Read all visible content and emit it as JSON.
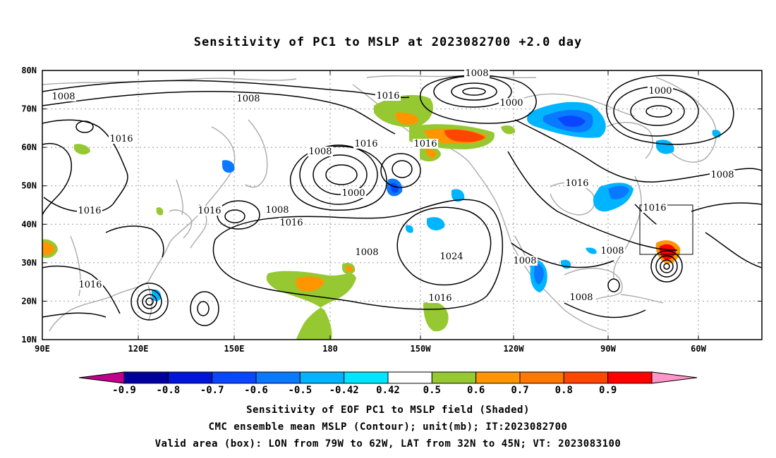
{
  "title": "Sensitivity of PC1 to MSLP at 2023082700 +2.0 day",
  "axes": {
    "lat_ticks": [
      "80N",
      "70N",
      "60N",
      "50N",
      "40N",
      "30N",
      "20N",
      "10N"
    ],
    "lon_ticks": [
      "90E",
      "120E",
      "150E",
      "180",
      "150W",
      "120W",
      "90W",
      "60W"
    ]
  },
  "contour_labels": [
    {
      "id": "c1",
      "text": "1008"
    },
    {
      "id": "c2",
      "text": "1008"
    },
    {
      "id": "c3",
      "text": "1016"
    },
    {
      "id": "c4",
      "text": "1008"
    },
    {
      "id": "c5",
      "text": "1000"
    },
    {
      "id": "c6",
      "text": "1000"
    },
    {
      "id": "c7",
      "text": "1016"
    },
    {
      "id": "c8",
      "text": "1008"
    },
    {
      "id": "c9",
      "text": "1016"
    },
    {
      "id": "c10",
      "text": "1016"
    },
    {
      "id": "c11",
      "text": "1000"
    },
    {
      "id": "c12",
      "text": "1016"
    },
    {
      "id": "c13",
      "text": "1016"
    },
    {
      "id": "c14",
      "text": "1008"
    },
    {
      "id": "c15",
      "text": "1016"
    },
    {
      "id": "c16",
      "text": "1016"
    },
    {
      "id": "c17",
      "text": "1024"
    },
    {
      "id": "c18",
      "text": "1008"
    },
    {
      "id": "c19",
      "text": "1016"
    },
    {
      "id": "c20",
      "text": "1008"
    },
    {
      "id": "c21",
      "text": "1008"
    },
    {
      "id": "c22",
      "text": "1016"
    },
    {
      "id": "c23",
      "text": "1008"
    },
    {
      "id": "c24",
      "text": "1016"
    }
  ],
  "colorbar": {
    "levels": [
      "-0.9",
      "-0.8",
      "-0.7",
      "-0.6",
      "-0.5",
      "-0.42",
      "0.42",
      "0.5",
      "0.6",
      "0.7",
      "0.8",
      "0.9"
    ],
    "colors": [
      "#c0008c",
      "#0000a0",
      "#0014dc",
      "#0a46ff",
      "#0a78ff",
      "#00b4ff",
      "#00e6ff",
      "#ffffff",
      "#96c832",
      "#ff9600",
      "#ff7800",
      "#ff4600",
      "#ff0000",
      "#ff96c8"
    ]
  },
  "captions": {
    "line1": "Sensitivity of EOF PC1 to MSLP field (Shaded)",
    "line2": "CMC ensemble mean MSLP (Contour); unit(mb); IT:2023082700",
    "line3": "Valid area (box): LON from 79W to 62W, LAT from 32N to 45N; VT: 2023083100"
  }
}
